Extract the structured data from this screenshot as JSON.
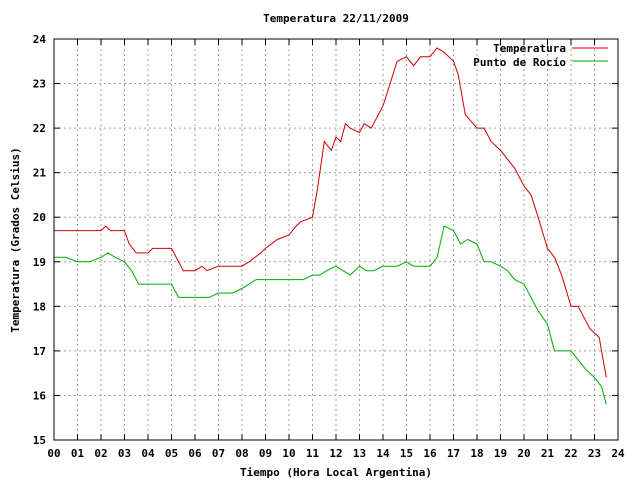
{
  "chart_data": {
    "type": "line",
    "title": "Temperatura 22/11/2009",
    "xlabel": "Tiempo (Hora Local Argentina)",
    "ylabel": "Temperatura (Grados Celsius)",
    "xlim": [
      0,
      24
    ],
    "ylim": [
      15,
      24
    ],
    "xticks": [
      "00",
      "01",
      "02",
      "03",
      "04",
      "05",
      "06",
      "07",
      "08",
      "09",
      "10",
      "11",
      "12",
      "13",
      "14",
      "15",
      "16",
      "17",
      "18",
      "19",
      "20",
      "21",
      "22",
      "23",
      "24"
    ],
    "yticks": [
      "15",
      "16",
      "17",
      "18",
      "19",
      "20",
      "21",
      "22",
      "23",
      "24"
    ],
    "grid": true,
    "legend_position": "top-right",
    "series": [
      {
        "name": "Temperatura",
        "color": "#cc0000",
        "x": [
          0,
          1,
          2,
          2.2,
          2.4,
          3,
          3.2,
          3.5,
          4,
          4.2,
          4.5,
          5,
          5.2,
          5.5,
          6,
          6.3,
          6.5,
          7,
          7.2,
          7.5,
          8,
          8.3,
          8.8,
          9,
          9.5,
          10,
          10.3,
          10.5,
          11,
          11.2,
          11.5,
          11.8,
          12,
          12.2,
          12.4,
          12.6,
          13,
          13.2,
          13.5,
          14,
          14.3,
          14.6,
          15,
          15.3,
          15.6,
          16,
          16.3,
          16.6,
          17,
          17.2,
          17.5,
          18,
          18.3,
          18.6,
          19,
          19.3,
          19.6,
          20,
          20.3,
          20.6,
          21,
          21.3,
          21.6,
          22,
          22.3,
          22.5,
          22.8,
          23,
          23.2,
          23.5
        ],
        "y": [
          19.7,
          19.7,
          19.7,
          19.8,
          19.7,
          19.7,
          19.4,
          19.2,
          19.2,
          19.3,
          19.3,
          19.3,
          19.1,
          18.8,
          18.8,
          18.9,
          18.8,
          18.9,
          18.9,
          18.9,
          18.9,
          19.0,
          19.2,
          19.3,
          19.5,
          19.6,
          19.8,
          19.9,
          20.0,
          20.6,
          21.7,
          21.5,
          21.8,
          21.7,
          22.1,
          22.0,
          21.9,
          22.1,
          22.0,
          22.5,
          23.0,
          23.5,
          23.6,
          23.4,
          23.6,
          23.6,
          23.8,
          23.7,
          23.5,
          23.2,
          22.3,
          22.0,
          22.0,
          21.7,
          21.5,
          21.3,
          21.1,
          20.7,
          20.5,
          20.0,
          19.3,
          19.1,
          18.7,
          18.0,
          18.0,
          17.8,
          17.5,
          17.4,
          17.3,
          16.4
        ]
      },
      {
        "name": "Punto de Rocío",
        "color": "#00aa00",
        "x": [
          0,
          0.5,
          1,
          1.5,
          2,
          2.3,
          2.6,
          3,
          3.3,
          3.6,
          4,
          4.3,
          5,
          5.3,
          5.6,
          6,
          6.3,
          6.6,
          7,
          7.3,
          7.6,
          8,
          8.3,
          8.6,
          9,
          9.5,
          10,
          10.3,
          10.6,
          11,
          11.3,
          11.6,
          12,
          12.3,
          12.6,
          13,
          13.3,
          13.6,
          14,
          14.3,
          14.6,
          15,
          15.3,
          15.6,
          16,
          16.3,
          16.6,
          17,
          17.3,
          17.6,
          18,
          18.3,
          18.6,
          19,
          19.3,
          19.6,
          20,
          20.3,
          20.6,
          21,
          21.3,
          21.6,
          22,
          22.3,
          22.6,
          23,
          23.3,
          23.5
        ],
        "y": [
          19.1,
          19.1,
          19.0,
          19.0,
          19.1,
          19.2,
          19.1,
          19.0,
          18.8,
          18.5,
          18.5,
          18.5,
          18.5,
          18.2,
          18.2,
          18.2,
          18.2,
          18.2,
          18.3,
          18.3,
          18.3,
          18.4,
          18.5,
          18.6,
          18.6,
          18.6,
          18.6,
          18.6,
          18.6,
          18.7,
          18.7,
          18.8,
          18.9,
          18.8,
          18.7,
          18.9,
          18.8,
          18.8,
          18.9,
          18.9,
          18.9,
          19.0,
          18.9,
          18.9,
          18.9,
          19.1,
          19.8,
          19.7,
          19.4,
          19.5,
          19.4,
          19.0,
          19.0,
          18.9,
          18.8,
          18.6,
          18.5,
          18.2,
          17.9,
          17.6,
          17.0,
          17.0,
          17.0,
          16.8,
          16.6,
          16.4,
          16.2,
          15.8
        ]
      }
    ]
  }
}
